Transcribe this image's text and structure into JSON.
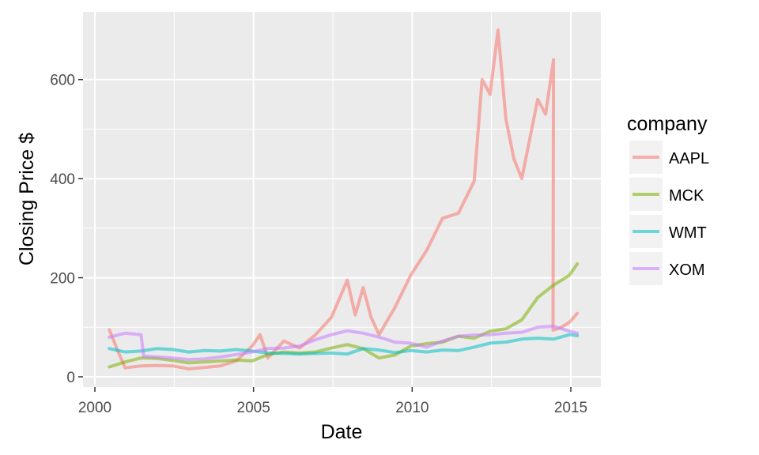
{
  "chart_data": {
    "type": "line",
    "xlabel": "Date",
    "ylabel": "Closing Price $",
    "xlim": [
      "2000-01-01",
      "2015-12-01"
    ],
    "ylim": [
      0,
      700
    ],
    "x_ticks": [
      "2000",
      "2005",
      "2010",
      "2015"
    ],
    "y_ticks": [
      "0",
      "200",
      "400",
      "600"
    ],
    "grid": true,
    "legend": {
      "title": "company",
      "placement": "right"
    },
    "series": [
      {
        "name": "AAPL",
        "color": "#F8766D",
        "points": [
          [
            "2000-06",
            95
          ],
          [
            "2000-09",
            55
          ],
          [
            "2000-12",
            18
          ],
          [
            "2001-06",
            22
          ],
          [
            "2001-12",
            23
          ],
          [
            "2002-06",
            22
          ],
          [
            "2002-12",
            16
          ],
          [
            "2003-06",
            19
          ],
          [
            "2003-12",
            22
          ],
          [
            "2004-06",
            32
          ],
          [
            "2004-12",
            62
          ],
          [
            "2005-03",
            85
          ],
          [
            "2005-06",
            38
          ],
          [
            "2005-12",
            72
          ],
          [
            "2006-06",
            58
          ],
          [
            "2006-12",
            85
          ],
          [
            "2007-06",
            120
          ],
          [
            "2007-12",
            195
          ],
          [
            "2008-03",
            125
          ],
          [
            "2008-06",
            180
          ],
          [
            "2008-09",
            120
          ],
          [
            "2008-12",
            85
          ],
          [
            "2009-06",
            140
          ],
          [
            "2009-12",
            205
          ],
          [
            "2010-06",
            255
          ],
          [
            "2010-12",
            320
          ],
          [
            "2011-06",
            330
          ],
          [
            "2011-12",
            395
          ],
          [
            "2012-03",
            600
          ],
          [
            "2012-06",
            570
          ],
          [
            "2012-09",
            700
          ],
          [
            "2012-12",
            520
          ],
          [
            "2013-03",
            440
          ],
          [
            "2013-06",
            400
          ],
          [
            "2013-09",
            480
          ],
          [
            "2013-12",
            560
          ],
          [
            "2014-03",
            530
          ],
          [
            "2014-06",
            640
          ],
          [
            "2014-06-09",
            94
          ],
          [
            "2014-09",
            100
          ],
          [
            "2014-12",
            110
          ],
          [
            "2015-03",
            128
          ]
        ]
      },
      {
        "name": "MCK",
        "color": "#7CAE00",
        "points": [
          [
            "2000-06",
            20
          ],
          [
            "2000-12",
            30
          ],
          [
            "2001-06",
            38
          ],
          [
            "2001-12",
            37
          ],
          [
            "2002-06",
            33
          ],
          [
            "2002-12",
            28
          ],
          [
            "2003-06",
            30
          ],
          [
            "2003-12",
            32
          ],
          [
            "2004-06",
            34
          ],
          [
            "2004-12",
            32
          ],
          [
            "2005-06",
            45
          ],
          [
            "2005-12",
            50
          ],
          [
            "2006-06",
            48
          ],
          [
            "2006-12",
            50
          ],
          [
            "2007-06",
            58
          ],
          [
            "2007-12",
            65
          ],
          [
            "2008-06",
            57
          ],
          [
            "2008-12",
            38
          ],
          [
            "2009-06",
            44
          ],
          [
            "2009-12",
            62
          ],
          [
            "2010-06",
            67
          ],
          [
            "2010-12",
            70
          ],
          [
            "2011-06",
            82
          ],
          [
            "2011-12",
            78
          ],
          [
            "2012-06",
            92
          ],
          [
            "2012-12",
            97
          ],
          [
            "2013-06",
            115
          ],
          [
            "2013-12",
            160
          ],
          [
            "2014-06",
            185
          ],
          [
            "2014-12",
            205
          ],
          [
            "2015-03",
            228
          ]
        ]
      },
      {
        "name": "WMT",
        "color": "#00BFC4",
        "points": [
          [
            "2000-06",
            57
          ],
          [
            "2000-12",
            50
          ],
          [
            "2001-06",
            52
          ],
          [
            "2001-12",
            57
          ],
          [
            "2002-06",
            55
          ],
          [
            "2002-12",
            50
          ],
          [
            "2003-06",
            53
          ],
          [
            "2003-12",
            52
          ],
          [
            "2004-06",
            55
          ],
          [
            "2004-12",
            52
          ],
          [
            "2005-06",
            48
          ],
          [
            "2005-12",
            47
          ],
          [
            "2006-06",
            46
          ],
          [
            "2006-12",
            47
          ],
          [
            "2007-06",
            48
          ],
          [
            "2007-12",
            46
          ],
          [
            "2008-06",
            57
          ],
          [
            "2008-12",
            54
          ],
          [
            "2009-06",
            49
          ],
          [
            "2009-12",
            53
          ],
          [
            "2010-06",
            50
          ],
          [
            "2010-12",
            54
          ],
          [
            "2011-06",
            53
          ],
          [
            "2011-12",
            60
          ],
          [
            "2012-06",
            68
          ],
          [
            "2012-12",
            70
          ],
          [
            "2013-06",
            76
          ],
          [
            "2013-12",
            78
          ],
          [
            "2014-06",
            76
          ],
          [
            "2014-12",
            85
          ],
          [
            "2015-03",
            83
          ]
        ]
      },
      {
        "name": "XOM",
        "color": "#C77CFF",
        "points": [
          [
            "2000-06",
            80
          ],
          [
            "2000-12",
            88
          ],
          [
            "2001-06",
            85
          ],
          [
            "2001-07",
            42
          ],
          [
            "2001-12",
            40
          ],
          [
            "2002-06",
            38
          ],
          [
            "2002-12",
            35
          ],
          [
            "2003-06",
            36
          ],
          [
            "2003-12",
            40
          ],
          [
            "2004-06",
            45
          ],
          [
            "2004-12",
            50
          ],
          [
            "2005-06",
            57
          ],
          [
            "2005-12",
            58
          ],
          [
            "2006-06",
            62
          ],
          [
            "2006-12",
            75
          ],
          [
            "2007-06",
            85
          ],
          [
            "2007-12",
            93
          ],
          [
            "2008-06",
            88
          ],
          [
            "2008-12",
            80
          ],
          [
            "2009-06",
            70
          ],
          [
            "2009-12",
            68
          ],
          [
            "2010-06",
            60
          ],
          [
            "2010-12",
            72
          ],
          [
            "2011-06",
            82
          ],
          [
            "2011-12",
            84
          ],
          [
            "2012-06",
            85
          ],
          [
            "2012-12",
            88
          ],
          [
            "2013-06",
            90
          ],
          [
            "2013-12",
            100
          ],
          [
            "2014-06",
            102
          ],
          [
            "2014-12",
            92
          ],
          [
            "2015-03",
            88
          ]
        ]
      }
    ]
  }
}
